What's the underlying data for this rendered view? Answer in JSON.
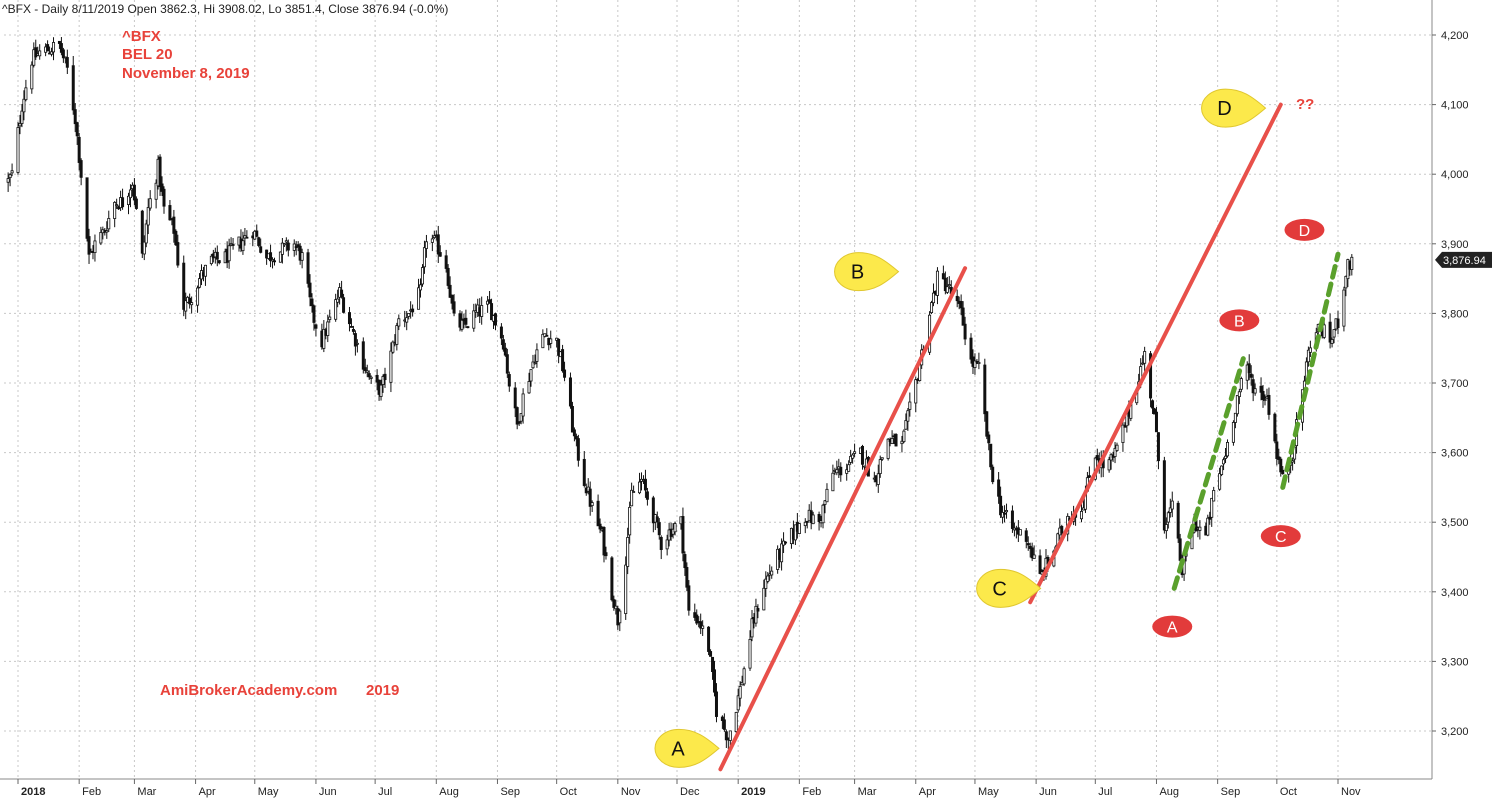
{
  "header": {
    "info": "^BFX - Daily 8/11/2019 Open 3862.3, Hi 3908.02, Lo 3851.4, Close 3876.94 (-0.0%)"
  },
  "annotations": {
    "ticker": "^BFX",
    "name": "BEL 20",
    "date": "November 8, 2019",
    "watermark_site": "AmiBrokerAcademy.com",
    "watermark_year": "2019",
    "question": "??"
  },
  "colors": {
    "text_red": "#e8423a",
    "trend_red": "#e8504a",
    "trend_green": "#5aa02c",
    "callout_yellow": "#fce94b",
    "marker_red": "#e23b3b",
    "grid": "#c8c8c8",
    "candle": "#111111",
    "price_tag": "#222222"
  },
  "chart_data": {
    "type": "candlestick",
    "title": "^BFX - Daily 8/11/2019 Open 3862.3, Hi 3908.02, Lo 3851.4, Close 3876.94 (-0.0%)",
    "ylim": [
      3130,
      4260
    ],
    "y_ticks": [
      3200,
      3300,
      3400,
      3500,
      3600,
      3700,
      3800,
      3900,
      4000,
      4100,
      4200
    ],
    "y_tick_labels": [
      "3,200",
      "3,300",
      "3,400",
      "3,500",
      "3,600",
      "3,700",
      "3,800",
      "3,900",
      "4,000",
      "4,100",
      "4,200"
    ],
    "x_ticks": [
      {
        "label": "2018",
        "date": "2018-01-01",
        "year": true
      },
      {
        "label": "Feb",
        "date": "2018-02-01"
      },
      {
        "label": "Mar",
        "date": "2018-03-01"
      },
      {
        "label": "Apr",
        "date": "2018-04-01"
      },
      {
        "label": "May",
        "date": "2018-05-01"
      },
      {
        "label": "Jun",
        "date": "2018-06-01"
      },
      {
        "label": "Jul",
        "date": "2018-07-01"
      },
      {
        "label": "Aug",
        "date": "2018-08-01"
      },
      {
        "label": "Sep",
        "date": "2018-09-01"
      },
      {
        "label": "Oct",
        "date": "2018-10-01"
      },
      {
        "label": "Nov",
        "date": "2018-11-01"
      },
      {
        "label": "Dec",
        "date": "2018-12-01"
      },
      {
        "label": "2019",
        "date": "2019-01-01",
        "year": true
      },
      {
        "label": "Feb",
        "date": "2019-02-01"
      },
      {
        "label": "Mar",
        "date": "2019-03-01"
      },
      {
        "label": "Apr",
        "date": "2019-04-01"
      },
      {
        "label": "May",
        "date": "2019-05-01"
      },
      {
        "label": "Jun",
        "date": "2019-06-01"
      },
      {
        "label": "Jul",
        "date": "2019-07-01"
      },
      {
        "label": "Aug",
        "date": "2019-08-01"
      },
      {
        "label": "Sep",
        "date": "2019-09-01"
      },
      {
        "label": "Oct",
        "date": "2019-10-01"
      },
      {
        "label": "Nov",
        "date": "2019-11-01"
      }
    ],
    "last_close_label": "3,876.94",
    "last_close": 3876.94,
    "grid": true,
    "price_path": [
      [
        "2017-12-27",
        3990
      ],
      [
        "2017-12-29",
        4000
      ],
      [
        "2018-01-03",
        4100
      ],
      [
        "2018-01-08",
        4165
      ],
      [
        "2018-01-12",
        4175
      ],
      [
        "2018-01-17",
        4180
      ],
      [
        "2018-01-22",
        4185
      ],
      [
        "2018-01-26",
        4150
      ],
      [
        "2018-01-30",
        4080
      ],
      [
        "2018-02-02",
        4000
      ],
      [
        "2018-02-06",
        3880
      ],
      [
        "2018-02-09",
        3900
      ],
      [
        "2018-02-14",
        3920
      ],
      [
        "2018-02-19",
        3960
      ],
      [
        "2018-02-23",
        3960
      ],
      [
        "2018-02-28",
        3990
      ],
      [
        "2018-03-05",
        3880
      ],
      [
        "2018-03-08",
        3950
      ],
      [
        "2018-03-13",
        4010
      ],
      [
        "2018-03-16",
        3950
      ],
      [
        "2018-03-21",
        3920
      ],
      [
        "2018-03-26",
        3810
      ],
      [
        "2018-03-29",
        3820
      ],
      [
        "2018-04-03",
        3850
      ],
      [
        "2018-04-09",
        3875
      ],
      [
        "2018-04-16",
        3880
      ],
      [
        "2018-04-23",
        3900
      ],
      [
        "2018-04-30",
        3920
      ],
      [
        "2018-05-07",
        3880
      ],
      [
        "2018-05-14",
        3890
      ],
      [
        "2018-05-21",
        3900
      ],
      [
        "2018-05-25",
        3880
      ],
      [
        "2018-05-30",
        3800
      ],
      [
        "2018-06-04",
        3760
      ],
      [
        "2018-06-08",
        3790
      ],
      [
        "2018-06-13",
        3830
      ],
      [
        "2018-06-19",
        3780
      ],
      [
        "2018-06-25",
        3730
      ],
      [
        "2018-06-29",
        3700
      ],
      [
        "2018-07-04",
        3690
      ],
      [
        "2018-07-09",
        3740
      ],
      [
        "2018-07-13",
        3790
      ],
      [
        "2018-07-18",
        3800
      ],
      [
        "2018-07-24",
        3830
      ],
      [
        "2018-07-27",
        3910
      ],
      [
        "2018-08-01",
        3900
      ],
      [
        "2018-08-06",
        3870
      ],
      [
        "2018-08-10",
        3790
      ],
      [
        "2018-08-15",
        3780
      ],
      [
        "2018-08-21",
        3800
      ],
      [
        "2018-08-28",
        3810
      ],
      [
        "2018-09-04",
        3760
      ],
      [
        "2018-09-07",
        3700
      ],
      [
        "2018-09-11",
        3640
      ],
      [
        "2018-09-14",
        3680
      ],
      [
        "2018-09-20",
        3740
      ],
      [
        "2018-09-25",
        3770
      ],
      [
        "2018-10-01",
        3760
      ],
      [
        "2018-10-05",
        3710
      ],
      [
        "2018-10-10",
        3620
      ],
      [
        "2018-10-15",
        3560
      ],
      [
        "2018-10-19",
        3520
      ],
      [
        "2018-10-24",
        3480
      ],
      [
        "2018-10-29",
        3400
      ],
      [
        "2018-11-01",
        3360
      ],
      [
        "2018-11-05",
        3450
      ],
      [
        "2018-11-08",
        3540
      ],
      [
        "2018-11-13",
        3560
      ],
      [
        "2018-11-19",
        3510
      ],
      [
        "2018-11-23",
        3470
      ],
      [
        "2018-11-28",
        3490
      ],
      [
        "2018-12-03",
        3500
      ],
      [
        "2018-12-07",
        3370
      ],
      [
        "2018-12-12",
        3360
      ],
      [
        "2018-12-17",
        3320
      ],
      [
        "2018-12-21",
        3230
      ],
      [
        "2018-12-27",
        3190
      ],
      [
        "2019-01-02",
        3260
      ],
      [
        "2019-01-08",
        3350
      ],
      [
        "2019-01-14",
        3410
      ],
      [
        "2019-01-21",
        3450
      ],
      [
        "2019-01-28",
        3480
      ],
      [
        "2019-02-04",
        3510
      ],
      [
        "2019-02-11",
        3500
      ],
      [
        "2019-02-18",
        3570
      ],
      [
        "2019-02-25",
        3580
      ],
      [
        "2019-03-04",
        3600
      ],
      [
        "2019-03-11",
        3560
      ],
      [
        "2019-03-18",
        3620
      ],
      [
        "2019-03-25",
        3610
      ],
      [
        "2019-04-01",
        3700
      ],
      [
        "2019-04-08",
        3800
      ],
      [
        "2019-04-12",
        3850
      ],
      [
        "2019-04-17",
        3840
      ],
      [
        "2019-04-24",
        3800
      ],
      [
        "2019-04-29",
        3730
      ],
      [
        "2019-05-03",
        3720
      ],
      [
        "2019-05-09",
        3580
      ],
      [
        "2019-05-14",
        3520
      ],
      [
        "2019-05-20",
        3490
      ],
      [
        "2019-05-27",
        3480
      ],
      [
        "2019-06-03",
        3420
      ],
      [
        "2019-06-10",
        3460
      ],
      [
        "2019-06-17",
        3510
      ],
      [
        "2019-06-24",
        3520
      ],
      [
        "2019-07-01",
        3600
      ],
      [
        "2019-07-05",
        3580
      ],
      [
        "2019-07-10",
        3590
      ],
      [
        "2019-07-16",
        3640
      ],
      [
        "2019-07-22",
        3700
      ],
      [
        "2019-07-26",
        3740
      ],
      [
        "2019-07-31",
        3650
      ],
      [
        "2019-08-05",
        3500
      ],
      [
        "2019-08-09",
        3520
      ],
      [
        "2019-08-14",
        3430
      ],
      [
        "2019-08-20",
        3500
      ],
      [
        "2019-08-26",
        3480
      ],
      [
        "2019-08-30",
        3540
      ],
      [
        "2019-09-05",
        3600
      ],
      [
        "2019-09-11",
        3680
      ],
      [
        "2019-09-16",
        3720
      ],
      [
        "2019-09-20",
        3690
      ],
      [
        "2019-09-26",
        3680
      ],
      [
        "2019-10-01",
        3600
      ],
      [
        "2019-10-04",
        3560
      ],
      [
        "2019-10-09",
        3600
      ],
      [
        "2019-10-14",
        3690
      ],
      [
        "2019-10-18",
        3760
      ],
      [
        "2019-10-23",
        3780
      ],
      [
        "2019-10-28",
        3760
      ],
      [
        "2019-11-01",
        3790
      ],
      [
        "2019-11-05",
        3860
      ],
      [
        "2019-11-08",
        3877
      ]
    ],
    "trend_lines": [
      {
        "color": "red",
        "from": [
          "2018-12-23",
          3145
        ],
        "to": [
          "2019-04-26",
          3865
        ]
      },
      {
        "color": "red",
        "from": [
          "2019-05-29",
          3385
        ],
        "to": [
          "2019-10-03",
          4100
        ]
      },
      {
        "color": "green",
        "dashed": true,
        "from": [
          "2019-08-10",
          3405
        ],
        "to": [
          "2019-09-14",
          3735
        ]
      },
      {
        "color": "green",
        "dashed": true,
        "from": [
          "2019-10-04",
          3550
        ],
        "to": [
          "2019-11-01",
          3885
        ]
      }
    ],
    "callouts": [
      {
        "text": "A",
        "shape": "yellow-callout",
        "at": [
          "2018-12-02",
          3175
        ]
      },
      {
        "text": "B",
        "shape": "yellow-callout",
        "at": [
          "2019-03-03",
          3860
        ]
      },
      {
        "text": "C",
        "shape": "yellow-callout",
        "at": [
          "2019-05-14",
          3405
        ]
      },
      {
        "text": "D",
        "shape": "yellow-callout",
        "at": [
          "2019-09-05",
          4095
        ]
      },
      {
        "text": "A",
        "shape": "red-oval",
        "at": [
          "2019-08-09",
          3350
        ]
      },
      {
        "text": "B",
        "shape": "red-oval",
        "at": [
          "2019-09-12",
          3790
        ]
      },
      {
        "text": "C",
        "shape": "red-oval",
        "at": [
          "2019-10-03",
          3480
        ]
      },
      {
        "text": "D",
        "shape": "red-oval",
        "at": [
          "2019-10-15",
          3920
        ]
      }
    ]
  }
}
